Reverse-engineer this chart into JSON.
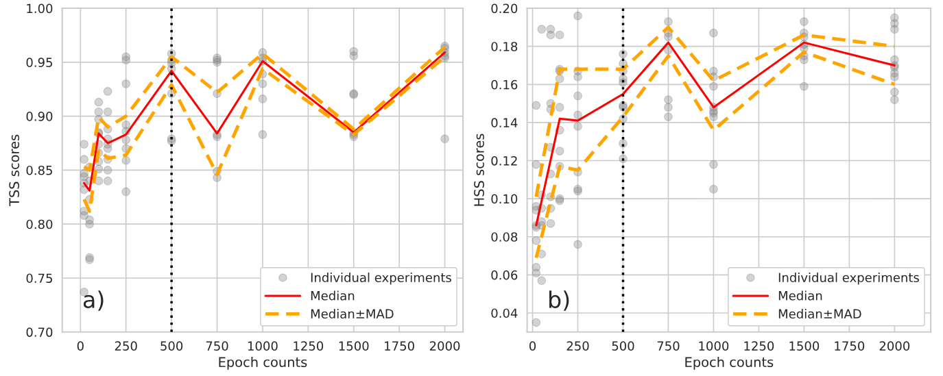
{
  "chart_data": [
    {
      "type": "line",
      "xlabel": "Epoch counts",
      "ylabel": "TSS scores",
      "annotations": [
        "a)"
      ],
      "xlim": [
        -100,
        2100
      ],
      "ylim": [
        0.7,
        1.0
      ],
      "xticks": [
        0,
        250,
        500,
        750,
        1000,
        1250,
        1500,
        1750,
        2000
      ],
      "yticks": [
        {
          "value": 0.7,
          "label": "0.70"
        },
        {
          "value": 0.75,
          "label": "0.75"
        },
        {
          "value": 0.8,
          "label": "0.80"
        },
        {
          "value": 0.85,
          "label": "0.85"
        },
        {
          "value": 0.9,
          "label": "0.90"
        },
        {
          "value": 0.95,
          "label": "0.95"
        },
        {
          "value": 1.0,
          "label": "1.00"
        }
      ],
      "grid": true,
      "legend": "bottom right",
      "ref_lines": [
        {
          "axis": "x",
          "value": 500,
          "color": "#000000",
          "line_style": "dotted"
        }
      ],
      "series": [
        {
          "name": "Individual experiments",
          "type": "scatter",
          "color": "#808080",
          "marker": "circle",
          "x": [
            20,
            20,
            20,
            20,
            20,
            20,
            20,
            20,
            20,
            50,
            50,
            50,
            50,
            50,
            50,
            50,
            100,
            100,
            100,
            100,
            100,
            100,
            100,
            100,
            100,
            100,
            150,
            150,
            150,
            150,
            150,
            150,
            150,
            150,
            150,
            250,
            250,
            250,
            250,
            250,
            250,
            250,
            250,
            250,
            500,
            500,
            500,
            500,
            500,
            500,
            500,
            750,
            750,
            750,
            750,
            750,
            750,
            750,
            750,
            1000,
            1000,
            1000,
            1000,
            1000,
            1000,
            1000,
            1500,
            1500,
            1500,
            1500,
            1500,
            1500,
            1500,
            2000,
            2000,
            2000,
            2000,
            2000,
            2000
          ],
          "values": [
            0.874,
            0.86,
            0.847,
            0.844,
            0.838,
            0.832,
            0.812,
            0.808,
            0.737,
            0.853,
            0.84,
            0.823,
            0.804,
            0.8,
            0.769,
            0.767,
            0.913,
            0.904,
            0.897,
            0.885,
            0.884,
            0.874,
            0.866,
            0.858,
            0.851,
            0.84,
            0.923,
            0.904,
            0.888,
            0.879,
            0.874,
            0.87,
            0.86,
            0.85,
            0.84,
            0.955,
            0.952,
            0.93,
            0.892,
            0.886,
            0.878,
            0.87,
            0.859,
            0.83,
            0.958,
            0.952,
            0.949,
            0.944,
            0.921,
            0.879,
            0.877,
            0.954,
            0.952,
            0.95,
            0.921,
            0.883,
            0.881,
            0.849,
            0.843,
            0.959,
            0.954,
            0.951,
            0.939,
            0.93,
            0.916,
            0.883,
            0.96,
            0.956,
            0.921,
            0.885,
            0.883,
            0.881,
            0.92,
            0.965,
            0.963,
            0.959,
            0.956,
            0.954,
            0.879
          ]
        },
        {
          "name": "Median",
          "color": "#ff0000",
          "line_style": "solid",
          "x": [
            20,
            50,
            100,
            150,
            250,
            500,
            750,
            1000,
            1500,
            2000
          ],
          "values": [
            0.838,
            0.831,
            0.884,
            0.875,
            0.883,
            0.942,
            0.884,
            0.951,
            0.885,
            0.959
          ]
        },
        {
          "name": "Median±MAD",
          "color": "#ffa500",
          "line_style": "dashed",
          "x": [
            20,
            50,
            100,
            150,
            250,
            500,
            750,
            1000,
            1500,
            2000
          ],
          "values": [
            0.853,
            0.85,
            0.899,
            0.89,
            0.9,
            0.955,
            0.922,
            0.958,
            0.888,
            0.964
          ]
        },
        {
          "color": "#ffa500",
          "line_style": "dashed",
          "x": [
            20,
            50,
            100,
            150,
            250,
            500,
            750,
            1000,
            1500,
            2000
          ],
          "values": [
            0.823,
            0.812,
            0.869,
            0.861,
            0.864,
            0.929,
            0.846,
            0.944,
            0.883,
            0.955
          ]
        }
      ]
    },
    {
      "type": "line",
      "xlabel": "Epoch counts",
      "ylabel": "HSS scores",
      "annotations": [
        "b)"
      ],
      "xlim": [
        -30,
        2200
      ],
      "ylim": [
        0.03,
        0.2
      ],
      "xticks": [
        0,
        250,
        500,
        750,
        1000,
        1250,
        1500,
        1750,
        2000
      ],
      "yticks": [
        {
          "value": 0.04,
          "label": "0.04"
        },
        {
          "value": 0.06,
          "label": "0.06"
        },
        {
          "value": 0.08,
          "label": "0.08"
        },
        {
          "value": 0.1,
          "label": "0.10"
        },
        {
          "value": 0.12,
          "label": "0.12"
        },
        {
          "value": 0.14,
          "label": "0.14"
        },
        {
          "value": 0.16,
          "label": "0.16"
        },
        {
          "value": 0.18,
          "label": "0.18"
        },
        {
          "value": 0.2,
          "label": "0.20"
        }
      ],
      "grid": true,
      "legend": "bottom right",
      "ref_lines": [
        {
          "axis": "x",
          "value": 500,
          "color": "#000000",
          "line_style": "dotted"
        }
      ],
      "series": [
        {
          "name": "Individual experiments",
          "type": "scatter",
          "color": "#808080",
          "marker": "circle",
          "x": [
            20,
            20,
            20,
            20,
            20,
            20,
            20,
            20,
            20,
            20,
            50,
            50,
            50,
            50,
            50,
            50,
            50,
            100,
            100,
            100,
            100,
            100,
            100,
            100,
            100,
            100,
            150,
            150,
            150,
            150,
            150,
            150,
            150,
            150,
            150,
            150,
            250,
            250,
            250,
            250,
            250,
            250,
            250,
            250,
            250,
            250,
            500,
            500,
            500,
            500,
            500,
            500,
            500,
            500,
            500,
            500,
            750,
            750,
            750,
            750,
            750,
            750,
            750,
            1000,
            1000,
            1000,
            1000,
            1000,
            1000,
            1000,
            1000,
            1000,
            1000,
            1500,
            1500,
            1500,
            1500,
            1500,
            1500,
            1500,
            1500,
            2000,
            2000,
            2000,
            2000,
            2000,
            2000,
            2000,
            2000,
            2000,
            2000
          ],
          "values": [
            0.149,
            0.118,
            0.096,
            0.094,
            0.086,
            0.085,
            0.078,
            0.064,
            0.061,
            0.035,
            0.189,
            0.102,
            0.095,
            0.088,
            0.086,
            0.071,
            0.057,
            0.189,
            0.186,
            0.15,
            0.147,
            0.127,
            0.113,
            0.101,
            0.095,
            0.087,
            0.186,
            0.168,
            0.167,
            0.163,
            0.148,
            0.136,
            0.125,
            0.117,
            0.1,
            0.099,
            0.196,
            0.167,
            0.164,
            0.154,
            0.144,
            0.138,
            0.114,
            0.105,
            0.104,
            0.076,
            0.176,
            0.171,
            0.167,
            0.163,
            0.161,
            0.149,
            0.148,
            0.142,
            0.129,
            0.121,
            0.193,
            0.187,
            0.185,
            0.178,
            0.152,
            0.148,
            0.143,
            0.187,
            0.167,
            0.164,
            0.159,
            0.148,
            0.146,
            0.145,
            0.143,
            0.118,
            0.105,
            0.193,
            0.187,
            0.185,
            0.181,
            0.179,
            0.175,
            0.173,
            0.159,
            0.195,
            0.192,
            0.189,
            0.173,
            0.17,
            0.169,
            0.166,
            0.164,
            0.156,
            0.152
          ]
        },
        {
          "name": "Median",
          "color": "#ff0000",
          "line_style": "solid",
          "x": [
            20,
            150,
            250,
            500,
            750,
            1000,
            1500,
            2000
          ],
          "values": [
            0.086,
            0.142,
            0.141,
            0.155,
            0.182,
            0.148,
            0.182,
            0.17
          ]
        },
        {
          "name": "Median±MAD",
          "color": "#ffa500",
          "line_style": "dashed",
          "x": [
            20,
            150,
            250,
            500,
            750,
            1000,
            1500,
            2000
          ],
          "values": [
            0.101,
            0.168,
            0.168,
            0.168,
            0.19,
            0.162,
            0.186,
            0.18
          ]
        },
        {
          "color": "#ffa500",
          "line_style": "dashed",
          "x": [
            20,
            150,
            250,
            500,
            750,
            1000,
            1500,
            2000
          ],
          "values": [
            0.069,
            0.117,
            0.115,
            0.143,
            0.175,
            0.136,
            0.177,
            0.16
          ]
        }
      ]
    }
  ]
}
